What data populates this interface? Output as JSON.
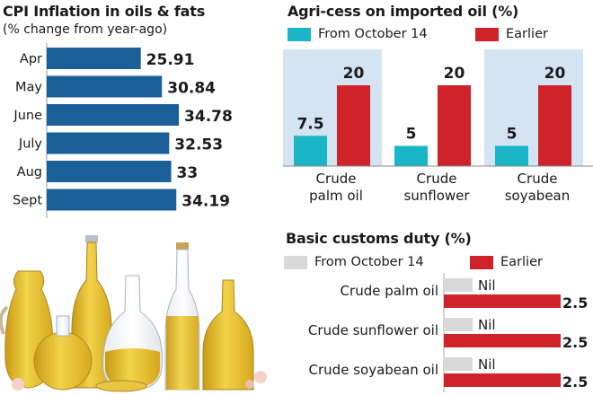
{
  "colors": {
    "cpi_bar": "#1a5f98",
    "teal": "#1ab6c7",
    "red": "#cf2229",
    "grey": "#d9d9d9",
    "panel_blue": "#d4e4f3"
  },
  "chart_data": [
    {
      "id": "cpi",
      "type": "bar",
      "orientation": "horizontal",
      "title": "CPI Inflation in oils & fats",
      "subtitle": "(% change from year-ago)",
      "categories": [
        "Apr",
        "May",
        "June",
        "July",
        "Aug",
        "Sept"
      ],
      "values": [
        25.91,
        30.84,
        34.78,
        32.53,
        33,
        34.19
      ],
      "value_labels": [
        "25.91",
        "30.84",
        "34.78",
        "32.53",
        "33",
        "34.19"
      ],
      "xlim": [
        0,
        40
      ]
    },
    {
      "id": "agri",
      "type": "bar",
      "title": "Agri-cess on imported oil (%)",
      "categories": [
        [
          "Crude",
          "palm oil"
        ],
        [
          "Crude",
          "sunflower"
        ],
        [
          "Crude",
          "soyabean"
        ]
      ],
      "series": [
        {
          "name": "From October 14",
          "values": [
            7.5,
            5,
            5
          ],
          "labels": [
            "7.5",
            "5",
            "5"
          ]
        },
        {
          "name": "Earlier",
          "values": [
            20,
            20,
            20
          ],
          "labels": [
            "20",
            "20",
            "20"
          ]
        }
      ],
      "ylim": [
        0,
        20
      ]
    },
    {
      "id": "bcd",
      "type": "bar",
      "orientation": "horizontal",
      "title": "Basic customs duty (%)",
      "categories": [
        "Crude palm oil",
        "Crude sunflower oil",
        "Crude soyabean oil"
      ],
      "series": [
        {
          "name": "From October 14",
          "values": [
            0,
            0,
            0
          ],
          "labels": [
            "Nil",
            "Nil",
            "Nil"
          ]
        },
        {
          "name": "Earlier",
          "values": [
            2.5,
            2.5,
            2.5
          ],
          "labels": [
            "2.5",
            "2.5",
            "2.5"
          ]
        }
      ],
      "xlim": [
        0,
        2.5
      ]
    }
  ]
}
